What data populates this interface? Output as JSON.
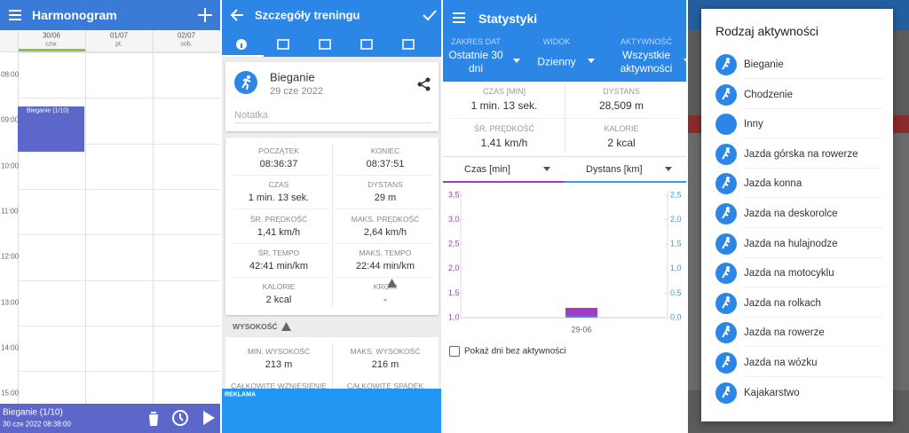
{
  "harmonogram": {
    "title": "Harmonogram",
    "days": [
      {
        "date": "30/06",
        "weekday": "czw."
      },
      {
        "date": "01/07",
        "weekday": "pt."
      },
      {
        "date": "02/07",
        "weekday": "sob."
      }
    ],
    "hours": [
      "08:00",
      "09:00",
      "10:00",
      "11:00",
      "12:00",
      "13:00",
      "14:00",
      "15:00"
    ],
    "event": "Bieganie (1/10)",
    "footer": {
      "title": "Bieganie (1/10)",
      "date": "30 cze 2022 08:38:00"
    }
  },
  "details": {
    "title": "Szczegóły treningu",
    "activity": "Bieganie",
    "date": "29 cze 2022",
    "note": "Notatka",
    "stats": [
      {
        "label": "POCZĄTEK",
        "value": "08:36:37"
      },
      {
        "label": "KONIEC",
        "value": "08:37:51"
      },
      {
        "label": "CZAS",
        "value": "1 min. 13 sek."
      },
      {
        "label": "DYSTANS",
        "value": "29 m"
      },
      {
        "label": "ŚR. PRĘDKOŚĆ",
        "value": "1,41 km/h"
      },
      {
        "label": "MAKS. PRĘDKOŚĆ",
        "value": "2,64 km/h"
      },
      {
        "label": "ŚR. TEMPO",
        "value": "42:41 min/km"
      },
      {
        "label": "MAKS. TEMPO",
        "value": "22:44 min/km"
      },
      {
        "label": "KALORIE",
        "value": "2 kcal"
      },
      {
        "label": "KROKI",
        "value": "-"
      }
    ],
    "elevation_title": "WYSOKOŚĆ",
    "elevation": [
      {
        "label": "MIN. WYSOKOŚĆ",
        "value": "213 m"
      },
      {
        "label": "MAKS. WYSOKOŚĆ",
        "value": "216 m"
      },
      {
        "label": "CAŁKOWITE WZNIESIENIE"
      },
      {
        "label": "CAŁKOWITE SPADEK"
      }
    ],
    "ad": "REKLAMA"
  },
  "statistics": {
    "title": "Statystyki",
    "filters": [
      {
        "label": "ZAKRES DAT",
        "value": "Ostatnie 30 dni"
      },
      {
        "label": "WIDOK",
        "value": "Dzienny"
      },
      {
        "label": "AKTYWNOŚĆ",
        "value": "Wszystkie aktywności"
      }
    ],
    "summary": [
      {
        "label": "CZAS [MIN]",
        "value": "1 min. 13 sek."
      },
      {
        "label": "DYSTANS",
        "value": "28,509 m"
      },
      {
        "label": "ŚR. PRĘDKOŚĆ",
        "value": "1,41 km/h"
      },
      {
        "label": "KALORIE",
        "value": "2 kcal"
      }
    ],
    "show_empty_days": "Pokaż dni bez aktywności"
  },
  "chart_data": {
    "type": "bar",
    "categories": [
      "29-06"
    ],
    "series": [
      {
        "name": "Czas [min]",
        "color": "#a03cc8",
        "values": [
          1.2
        ]
      },
      {
        "name": "Dystans [km]",
        "color": "#3a9be8",
        "axis": "y2",
        "values": [
          0.03
        ]
      }
    ],
    "ylim": [
      1.0,
      3.5
    ],
    "yticks": [
      {
        "value": 1.0,
        "label": "1,0"
      },
      {
        "value": 1.5,
        "label": "1,5"
      },
      {
        "value": 2.0,
        "label": "2,0"
      },
      {
        "value": 2.5,
        "label": "2,5"
      },
      {
        "value": 3.0,
        "label": "3,0"
      },
      {
        "value": 3.5,
        "label": "3,5"
      }
    ],
    "y2lim": [
      0,
      2.5
    ],
    "y2ticks": [
      {
        "value": 0,
        "label": "0,0"
      },
      {
        "value": 0.5,
        "label": "0,5"
      },
      {
        "value": 1.0,
        "label": "1,0"
      },
      {
        "value": 1.5,
        "label": "1,5"
      },
      {
        "value": 2.0,
        "label": "2,0"
      },
      {
        "value": 2.5,
        "label": "2,5"
      }
    ]
  },
  "activity_dialog": {
    "title": "Rodzaj aktywności",
    "items": [
      "Bieganie",
      "Chodzenie",
      "Inny",
      "Jazda górska na rowerze",
      "Jazda konna",
      "Jazda na deskorolce",
      "Jazda na hulajnodze",
      "Jazda na motocyklu",
      "Jazda na rolkach",
      "Jazda na rowerze",
      "Jazda na wózku",
      "Kajakarstwo"
    ]
  }
}
